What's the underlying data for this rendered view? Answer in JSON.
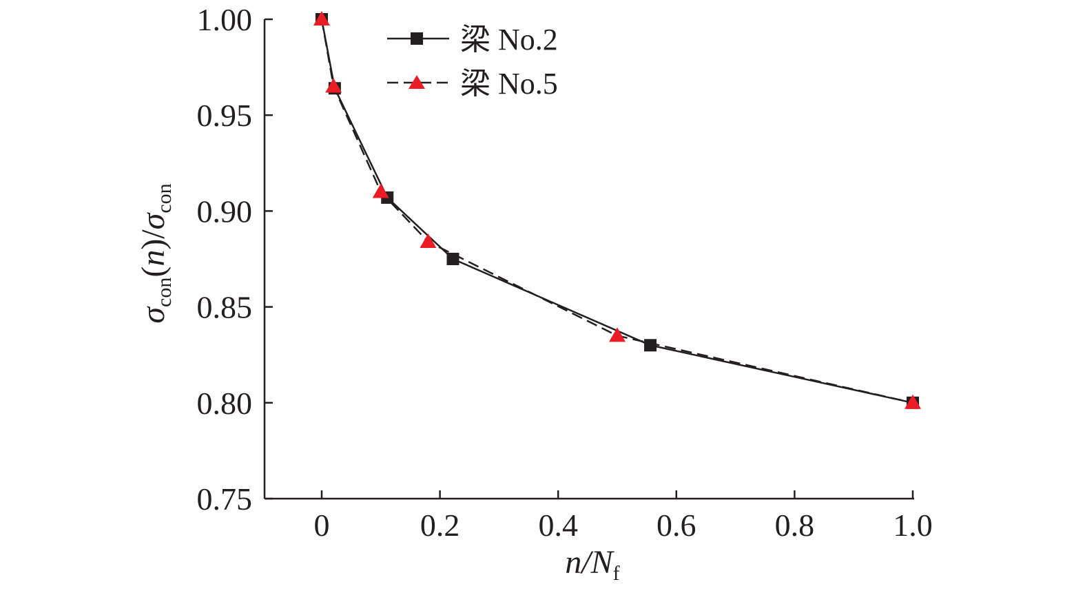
{
  "chart_data": {
    "type": "line",
    "title": "",
    "xlabel": {
      "main": "n",
      "sep": "/N",
      "sub": "f"
    },
    "ylabel": {
      "sym1": "σ",
      "sub1": "con",
      "arg_open": "(",
      "arg": "n",
      "arg_close": ")/",
      "sym2": "σ",
      "sub2": "con"
    },
    "xlim": [
      -0.1,
      1.0
    ],
    "ylim": [
      0.75,
      1.0
    ],
    "x_ticks": [
      0,
      0.2,
      0.4,
      0.6,
      0.8,
      1.0
    ],
    "x_tick_labels": [
      "0",
      "0.2",
      "0.4",
      "0.6",
      "0.8",
      "1.0"
    ],
    "y_ticks": [
      0.75,
      0.8,
      0.85,
      0.9,
      0.95,
      1.0
    ],
    "y_tick_labels": [
      "0.75",
      "0.80",
      "0.85",
      "0.90",
      "0.95",
      "1.00"
    ],
    "grid": false,
    "legend_position": "top-left",
    "series": [
      {
        "name": "梁 No.2",
        "marker": "square",
        "line_style": "solid",
        "color": "#231f20",
        "x": [
          0,
          0.022,
          0.111,
          0.222,
          0.556,
          1.0
        ],
        "y": [
          1.0,
          0.964,
          0.907,
          0.875,
          0.83,
          0.8
        ]
      },
      {
        "name": "梁 No.5",
        "marker": "triangle",
        "line_style": "dashed",
        "color": "#231f20",
        "marker_color": "#ec1c24",
        "x": [
          0,
          0.02,
          0.1,
          0.18,
          0.5,
          1.0
        ],
        "y": [
          1.0,
          0.965,
          0.91,
          0.884,
          0.835,
          0.8
        ]
      }
    ]
  }
}
